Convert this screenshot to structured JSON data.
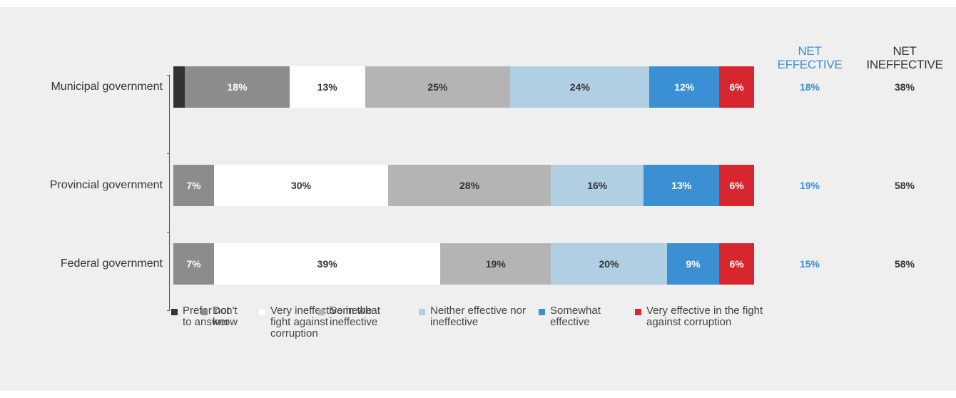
{
  "chart_data": {
    "type": "stacked-bar-horizontal",
    "categories": [
      "Municipal government",
      "Provincial government",
      "Federal government"
    ],
    "xlim": [
      0,
      100
    ],
    "series": [
      {
        "name": "Prefer not to answer",
        "color": "#333333",
        "values": [
          2,
          0,
          0
        ]
      },
      {
        "name": "Don't know",
        "color": "#8c8c8c",
        "label_color": "#ffffff",
        "values": [
          18,
          7,
          7
        ],
        "value_labels": [
          "18%",
          "7%",
          "7%"
        ]
      },
      {
        "name": "Very ineffective in the fight against corruption",
        "color": "#ffffff",
        "label_color": "#333333",
        "values": [
          13,
          30,
          39
        ],
        "value_labels": [
          "13%",
          "30%",
          "39%"
        ]
      },
      {
        "name": "Somewhat ineffective",
        "color": "#b4b4b4",
        "label_color": "#333333",
        "values": [
          25,
          28,
          19
        ],
        "value_labels": [
          "25%",
          "28%",
          "19%"
        ]
      },
      {
        "name": "Neither effective nor ineffective",
        "color": "#b0cfe2",
        "label_color": "#333333",
        "values": [
          24,
          16,
          20
        ],
        "value_labels": [
          "24%",
          "16%",
          "20%"
        ]
      },
      {
        "name": "Somewhat effective",
        "color": "#3b90d4",
        "label_color": "#ffffff",
        "values": [
          12,
          13,
          9
        ],
        "value_labels": [
          "12%",
          "13%",
          "9%"
        ]
      },
      {
        "name": "Very effective in the fight against corruption",
        "color": "#d7262e",
        "label_color": "#ffffff",
        "values": [
          6,
          6,
          6
        ],
        "value_labels": [
          "6%",
          "6%",
          "6%"
        ]
      }
    ],
    "net_columns": [
      {
        "name": "NET EFFECTIVE",
        "color": "#3b90d4",
        "values": [
          18,
          19,
          15
        ],
        "value_labels": [
          "18%",
          "19%",
          "15%"
        ]
      },
      {
        "name": "NET INEFFECTIVE",
        "color": "#333333",
        "values": [
          38,
          58,
          58
        ],
        "value_labels": [
          "38%",
          "58%",
          "58%"
        ]
      }
    ]
  }
}
